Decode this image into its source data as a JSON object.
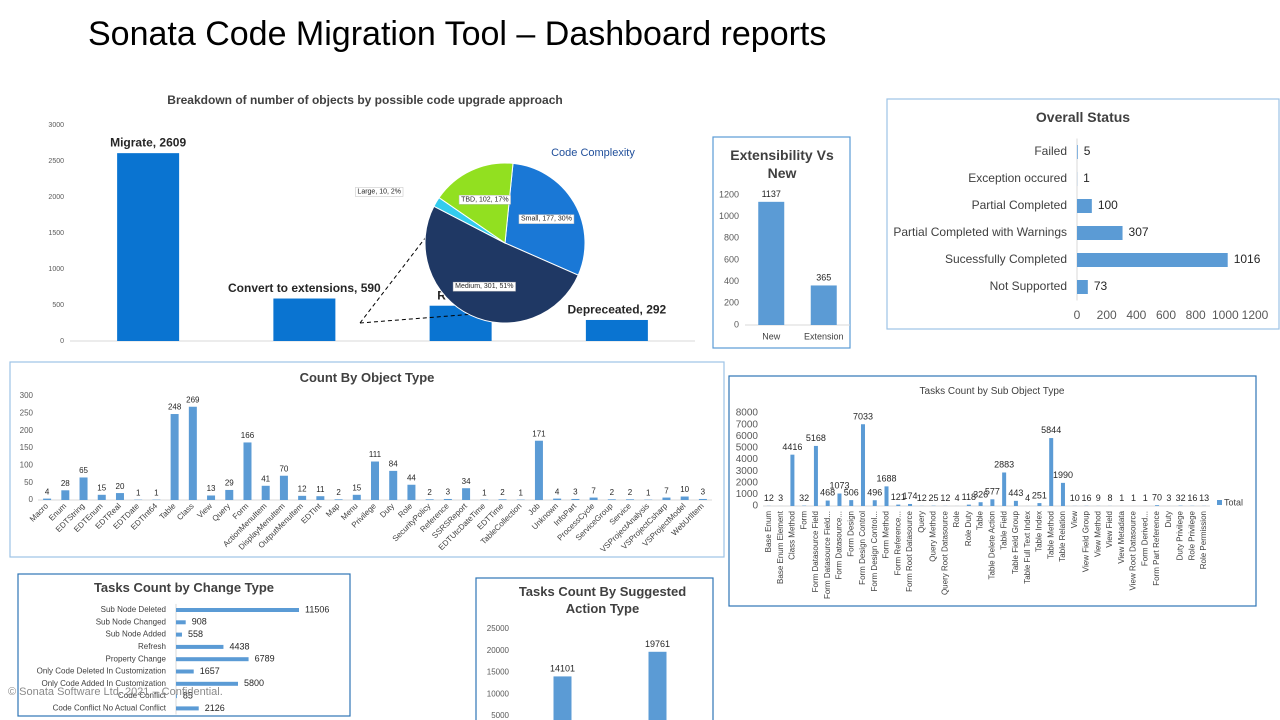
{
  "title": "Sonata Code Migration Tool – Dashboard reports",
  "footer": "© Sonata Software Ltd. 2021 – Confidential.",
  "chart_data": [
    {
      "type": "bar",
      "title": "Breakdown of number of objects by possible code upgrade approach",
      "values": [
        2609,
        590,
        490,
        292
      ],
      "value_labels": [
        "Migrate, 2609",
        "Convert to extensions, 590",
        "Redesig",
        "Depreceated, 292"
      ],
      "color": "#0a74d1",
      "ylim": [
        0,
        3000
      ],
      "yticks": [
        0,
        500,
        1000,
        1500,
        2000,
        2500,
        3000
      ]
    },
    {
      "type": "pie",
      "title": "Code Complexity",
      "categories": [
        "Small",
        "Medium",
        "Large",
        "TBD"
      ],
      "values": [
        30,
        51,
        2,
        17
      ],
      "value_labels": [
        "Small, 177, 30%",
        "Medium, 301, 51%",
        "Large, 10, 2%",
        "TBD, 102, 17%"
      ],
      "colors": [
        "#1a78d6",
        "#1f3864",
        "#33ccee",
        "#92e020"
      ]
    },
    {
      "type": "bar",
      "title": "Extensibility Vs New",
      "categories": [
        "New",
        "Extension"
      ],
      "values": [
        1137,
        365
      ],
      "color": "#5b9bd5",
      "ylim": [
        0,
        1200
      ],
      "yticks": [
        0,
        200,
        400,
        600,
        800,
        1000,
        1200
      ]
    },
    {
      "type": "bar",
      "horizontal": true,
      "title": "Overall Status",
      "categories": [
        "Failed",
        "Exception occured",
        "Partial Completed",
        "Partial Completed with Warnings",
        "Sucessfully Completed",
        "Not Supported"
      ],
      "values": [
        5,
        1,
        100,
        307,
        1016,
        73
      ],
      "color": "#5b9bd5",
      "xlim": [
        0,
        1200
      ],
      "xticks": [
        0,
        200,
        400,
        600,
        800,
        1000,
        1200
      ]
    },
    {
      "type": "bar",
      "title": "Count By Object Type",
      "categories": [
        "Macro",
        "Enum",
        "EDTString",
        "EDTEnum",
        "EDTReal",
        "EDTDate",
        "EDTInt64",
        "Table",
        "Class",
        "View",
        "Query",
        "Form",
        "ActionMenuItem",
        "DisplayMenuItem",
        "OutputMenuItem",
        "EDTInt",
        "Map",
        "Menu",
        "Privilege",
        "Duty",
        "Role",
        "SecurityPolicy",
        "Reference",
        "SSRSReport",
        "EDTUtcDateTime",
        "EDTTime",
        "TableCollection",
        "Job",
        "Unknown",
        "InfoPart",
        "ProcessCycle",
        "ServiceGroup",
        "Service",
        "VSProjectAnalysis",
        "VSProjectCsharp",
        "VSProjectModel",
        "WebUrlItem"
      ],
      "values": [
        4,
        28,
        65,
        15,
        20,
        1,
        1,
        248,
        269,
        13,
        29,
        166,
        41,
        70,
        12,
        11,
        2,
        15,
        111,
        84,
        44,
        2,
        3,
        34,
        1,
        2,
        1,
        171,
        4,
        3,
        7,
        2,
        2,
        1,
        7,
        10,
        3
      ],
      "color": "#5b9bd5",
      "ylim": [
        0,
        300
      ],
      "yticks": [
        0,
        50,
        100,
        150,
        200,
        250,
        300
      ]
    },
    {
      "type": "bar",
      "title": "Tasks Count by Sub Object Type",
      "categories": [
        "Base Enum",
        "Base Enum Element",
        "Class Method",
        "Form",
        "Form Datasource Field",
        "Form Datasource Field...",
        "Form Datasource...",
        "Form Design",
        "Form Design Control",
        "Form Design Control...",
        "Form Method",
        "Form Reference...",
        "Form Root Datasource",
        "Query",
        "Query Method",
        "Query Root Datasource",
        "Role",
        "Role Duty",
        "Table",
        "Table Delete Action",
        "Table Field",
        "Table Field Group",
        "Table Full Text Index",
        "Table Index",
        "Table Method",
        "Table Relation",
        "View",
        "View Field Group",
        "View Method",
        "View Field",
        "View Metadata",
        "View Root Datasource",
        "Form Derived...",
        "Form Part Reference",
        "Duty",
        "Duty Privilege",
        "Role Privilege",
        "Role Permission"
      ],
      "series": [
        {
          "name": "Total",
          "color": "#5b9bd5",
          "values": [
            12,
            3,
            4416,
            32,
            5168,
            468,
            1073,
            506,
            7033,
            496,
            1688,
            121,
            174,
            12,
            25,
            12,
            4,
            118,
            326,
            577,
            2883,
            443,
            4,
            251,
            5844,
            1990,
            10,
            16,
            9,
            8,
            1,
            1,
            1,
            70,
            3,
            32,
            16,
            13
          ]
        }
      ],
      "ylim": [
        0,
        8000
      ],
      "yticks": [
        0,
        1000,
        2000,
        3000,
        4000,
        5000,
        6000,
        7000,
        8000
      ]
    },
    {
      "type": "bar",
      "horizontal": true,
      "title": "Tasks Count by Change Type",
      "categories": [
        "Sub Node Deleted",
        "Sub Node Changed",
        "Sub Node Added",
        "Refresh",
        "Property Change",
        "Only Code Deleted In Customization",
        "Only Code Added In Customization",
        "Code Conflict",
        "Code Conflict No Actual Conflict"
      ],
      "values": [
        11506,
        908,
        558,
        4438,
        6789,
        1657,
        5800,
        85,
        2126
      ],
      "color": "#5b9bd5"
    },
    {
      "type": "bar",
      "title": "Tasks Count By Suggested Action Type",
      "values": [
        14101,
        19761
      ],
      "color": "#5b9bd5",
      "ylim": [
        0,
        25000
      ],
      "yticks": [
        5000,
        10000,
        15000,
        20000,
        25000
      ]
    }
  ]
}
